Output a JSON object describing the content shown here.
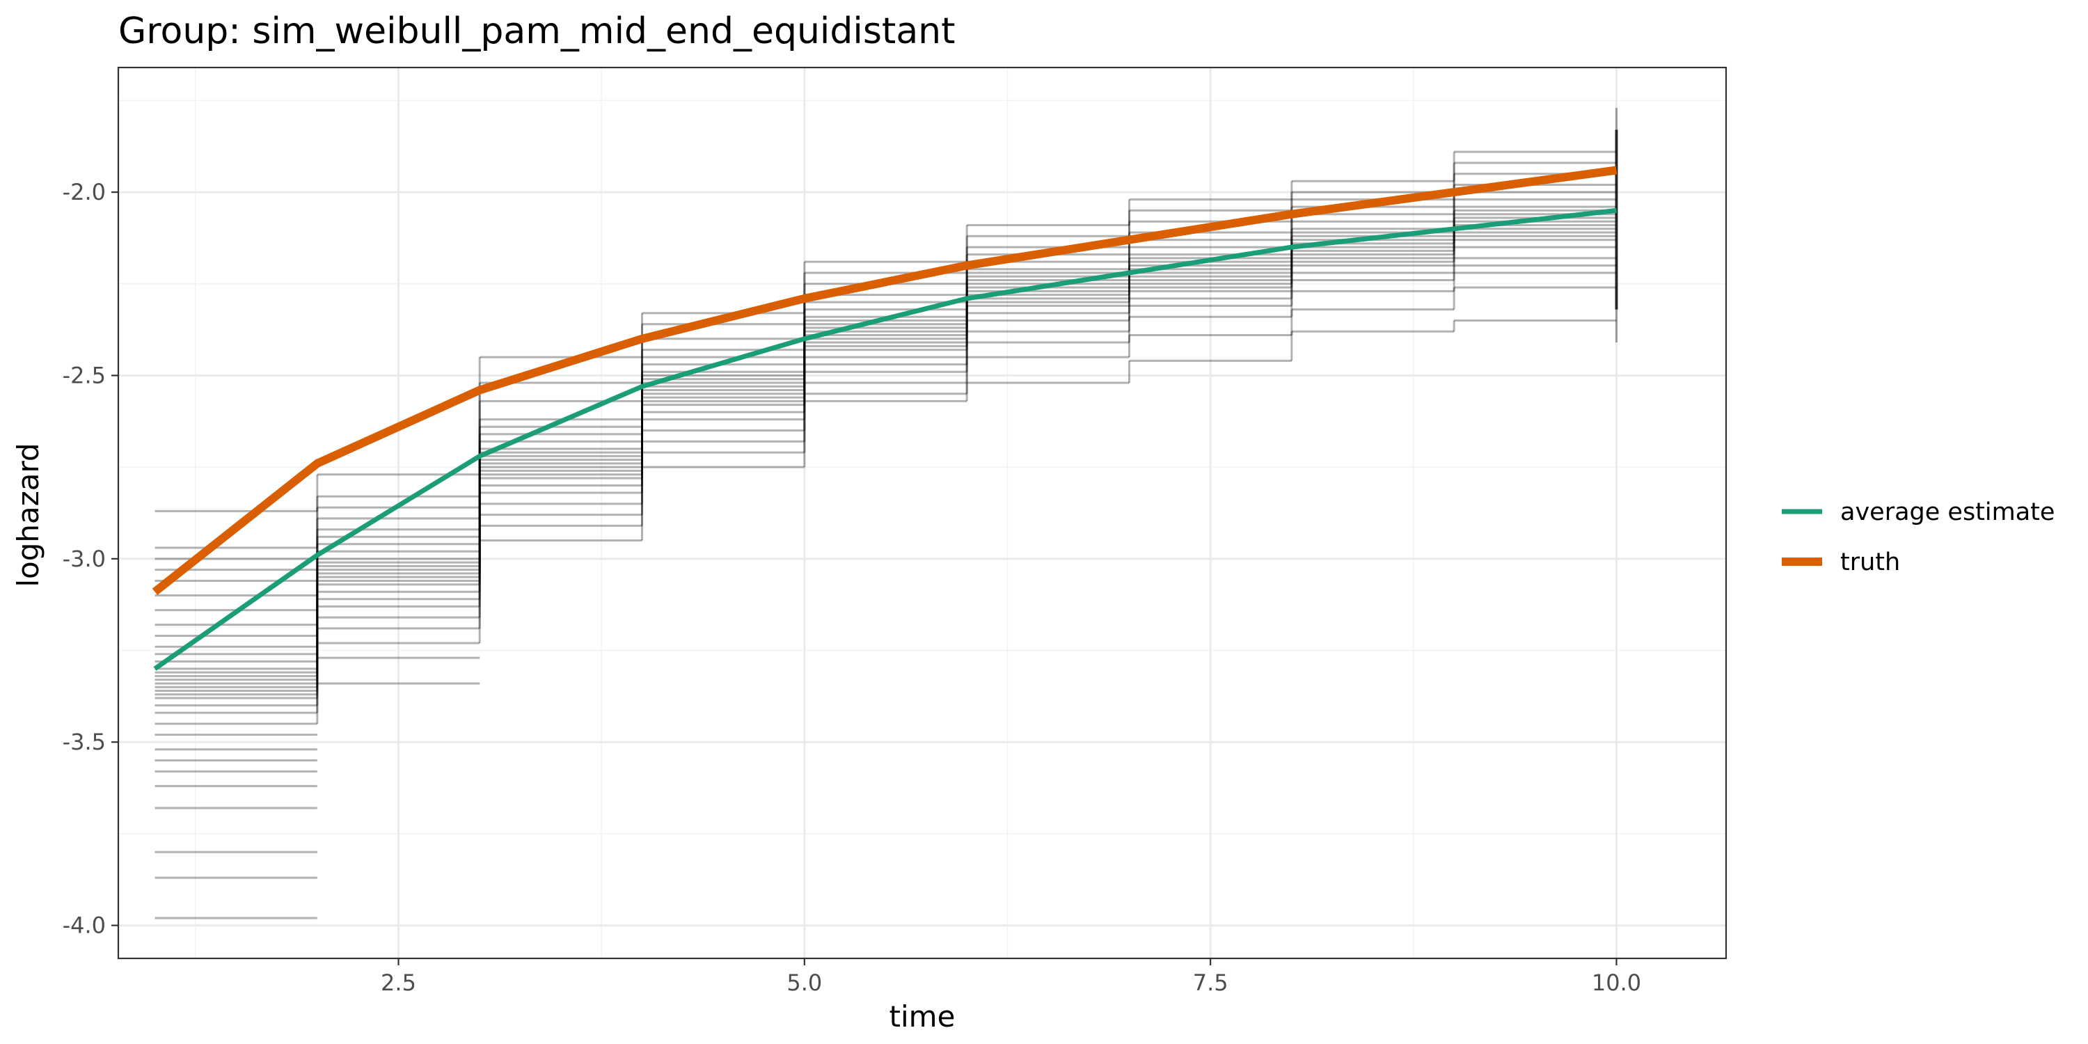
{
  "chart_data": {
    "type": "line",
    "title": "Group: sim_weibull_pam_mid_end_equidistant",
    "xlabel": "time",
    "ylabel": "loghazard",
    "xlim": [
      0.775,
      10.675
    ],
    "ylim": [
      -4.09,
      -1.66
    ],
    "x_ticks": [
      2.5,
      5.0,
      7.5,
      10.0
    ],
    "x_tick_labels": [
      "2.5",
      "5.0",
      "7.5",
      "10.0"
    ],
    "y_ticks": [
      -4.0,
      -3.5,
      -3.0,
      -2.5,
      -2.0
    ],
    "y_tick_labels": [
      "-4.0",
      "-3.5",
      "-3.0",
      "-2.5",
      "-2.0"
    ],
    "grid": true,
    "legend_position": "right",
    "x": [
      1,
      2,
      3,
      4,
      5,
      6,
      7,
      8,
      9,
      10
    ],
    "series": [
      {
        "name": "average estimate",
        "color": "#1b9e77",
        "values": [
          -3.3,
          -2.99,
          -2.72,
          -2.53,
          -2.4,
          -2.29,
          -2.22,
          -2.15,
          -2.1,
          -2.05
        ]
      },
      {
        "name": "truth",
        "color": "#d95f02",
        "values": [
          -3.09,
          -2.74,
          -2.54,
          -2.4,
          -2.29,
          -2.2,
          -2.13,
          -2.06,
          -2.0,
          -1.94
        ]
      }
    ],
    "step_estimates": {
      "color": "#000000",
      "description": "piecewise-constant simulation estimates per interval",
      "intervals": [
        {
          "start": 1,
          "end": 2,
          "levels": [
            -2.87,
            -2.97,
            -3.0,
            -3.03,
            -3.06,
            -3.1,
            -3.14,
            -3.18,
            -3.21,
            -3.24,
            -3.26,
            -3.28,
            -3.3,
            -3.31,
            -3.32,
            -3.33,
            -3.34,
            -3.35,
            -3.36,
            -3.37,
            -3.38,
            -3.4,
            -3.42,
            -3.45,
            -3.48,
            -3.52,
            -3.55,
            -3.58,
            -3.62,
            -3.68,
            -3.8,
            -3.87,
            -3.98
          ]
        },
        {
          "start": 2,
          "end": 3,
          "levels": [
            -2.77,
            -2.83,
            -2.86,
            -2.89,
            -2.92,
            -2.94,
            -2.96,
            -2.98,
            -3.0,
            -3.01,
            -3.02,
            -3.03,
            -3.04,
            -3.05,
            -3.06,
            -3.07,
            -3.09,
            -3.11,
            -3.13,
            -3.16,
            -3.19,
            -3.23,
            -3.27,
            -3.34
          ]
        },
        {
          "start": 3,
          "end": 4,
          "levels": [
            -2.45,
            -2.52,
            -2.57,
            -2.62,
            -2.64,
            -2.66,
            -2.68,
            -2.7,
            -2.71,
            -2.72,
            -2.73,
            -2.74,
            -2.75,
            -2.76,
            -2.77,
            -2.78,
            -2.8,
            -2.82,
            -2.85,
            -2.88,
            -2.91,
            -2.95
          ]
        },
        {
          "start": 4,
          "end": 5,
          "levels": [
            -2.33,
            -2.36,
            -2.4,
            -2.43,
            -2.45,
            -2.47,
            -2.49,
            -2.5,
            -2.51,
            -2.52,
            -2.53,
            -2.54,
            -2.55,
            -2.56,
            -2.57,
            -2.58,
            -2.6,
            -2.62,
            -2.65,
            -2.68,
            -2.71,
            -2.75
          ]
        },
        {
          "start": 5,
          "end": 6,
          "levels": [
            -2.19,
            -2.22,
            -2.25,
            -2.28,
            -2.3,
            -2.32,
            -2.34,
            -2.35,
            -2.36,
            -2.37,
            -2.38,
            -2.39,
            -2.4,
            -2.41,
            -2.42,
            -2.43,
            -2.45,
            -2.47,
            -2.49,
            -2.52,
            -2.55,
            -2.57
          ]
        },
        {
          "start": 6,
          "end": 7,
          "levels": [
            -2.09,
            -2.12,
            -2.15,
            -2.17,
            -2.19,
            -2.21,
            -2.22,
            -2.23,
            -2.24,
            -2.25,
            -2.26,
            -2.27,
            -2.28,
            -2.29,
            -2.3,
            -2.31,
            -2.33,
            -2.35,
            -2.38,
            -2.41,
            -2.45,
            -2.52
          ]
        },
        {
          "start": 7,
          "end": 8,
          "levels": [
            -2.02,
            -2.05,
            -2.08,
            -2.11,
            -2.13,
            -2.15,
            -2.17,
            -2.18,
            -2.19,
            -2.2,
            -2.21,
            -2.22,
            -2.23,
            -2.24,
            -2.25,
            -2.26,
            -2.27,
            -2.29,
            -2.31,
            -2.34,
            -2.39,
            -2.46
          ]
        },
        {
          "start": 8,
          "end": 9,
          "levels": [
            -1.97,
            -2.0,
            -2.02,
            -2.04,
            -2.06,
            -2.08,
            -2.1,
            -2.11,
            -2.12,
            -2.13,
            -2.14,
            -2.15,
            -2.16,
            -2.17,
            -2.18,
            -2.19,
            -2.2,
            -2.22,
            -2.24,
            -2.27,
            -2.32,
            -2.38
          ]
        },
        {
          "start": 9,
          "end": 10,
          "levels": [
            -1.89,
            -1.92,
            -1.95,
            -1.98,
            -2.0,
            -2.02,
            -2.04,
            -2.05,
            -2.06,
            -2.07,
            -2.08,
            -2.09,
            -2.1,
            -2.11,
            -2.12,
            -2.13,
            -2.15,
            -2.18,
            -2.2,
            -2.22,
            -2.26,
            -2.35
          ]
        }
      ],
      "end_spikes": {
        "x": 10,
        "min": -2.41,
        "max": -1.77
      }
    }
  }
}
